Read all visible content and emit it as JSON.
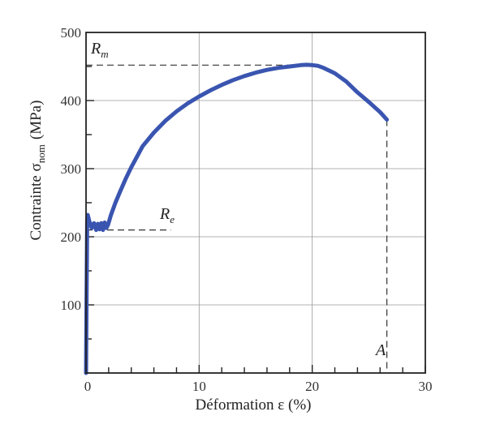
{
  "chart_data": {
    "type": "line",
    "xlabel": "Déformation ε (%)",
    "ylabel_main": "Contrainte σ",
    "ylabel_sub": "nom",
    "ylabel_unit": "(MPa)",
    "xlim": [
      0,
      30
    ],
    "ylim": [
      0,
      500
    ],
    "x_ticks": [
      0,
      10,
      20,
      30
    ],
    "y_ticks": [
      100,
      200,
      300,
      400,
      500
    ],
    "x_tick_labels": [
      "0",
      "10",
      "20",
      "30"
    ],
    "y_tick_labels": [
      "100",
      "200",
      "300",
      "400",
      "500"
    ],
    "grid": true,
    "series": [
      {
        "color": "#3a55b0",
        "x": [
          0,
          0.05,
          0.1,
          0.15,
          0.3,
          0.5,
          0.7,
          0.9,
          1.05,
          1.2,
          1.35,
          1.5,
          1.65,
          1.8,
          1.95,
          2.2,
          2.6,
          3,
          3.5,
          4,
          5,
          6,
          7,
          8,
          9,
          10,
          11,
          12,
          13,
          14,
          15,
          16,
          17,
          18,
          19,
          19.5,
          20,
          20.5,
          21,
          22,
          23,
          24,
          25,
          26,
          26.6
        ],
        "y": [
          0,
          120,
          225,
          232,
          222,
          213,
          220,
          210,
          219,
          211,
          220,
          210,
          221,
          213,
          218,
          232,
          250,
          266,
          285,
          302,
          333,
          353,
          370,
          384,
          396,
          406,
          415,
          423,
          430,
          436,
          441,
          445,
          448,
          450,
          452,
          452.5,
          452,
          451,
          448,
          440,
          428,
          412,
          398,
          383,
          372
        ]
      }
    ],
    "annotations": {
      "Rm": {
        "label": "R",
        "sub": "m",
        "value": 452,
        "x": 19.5
      },
      "Re": {
        "label": "R",
        "sub": "e",
        "value": 210,
        "x_end": 7.5
      },
      "A": {
        "label": "A",
        "x": 26.6,
        "value": 372
      }
    }
  }
}
